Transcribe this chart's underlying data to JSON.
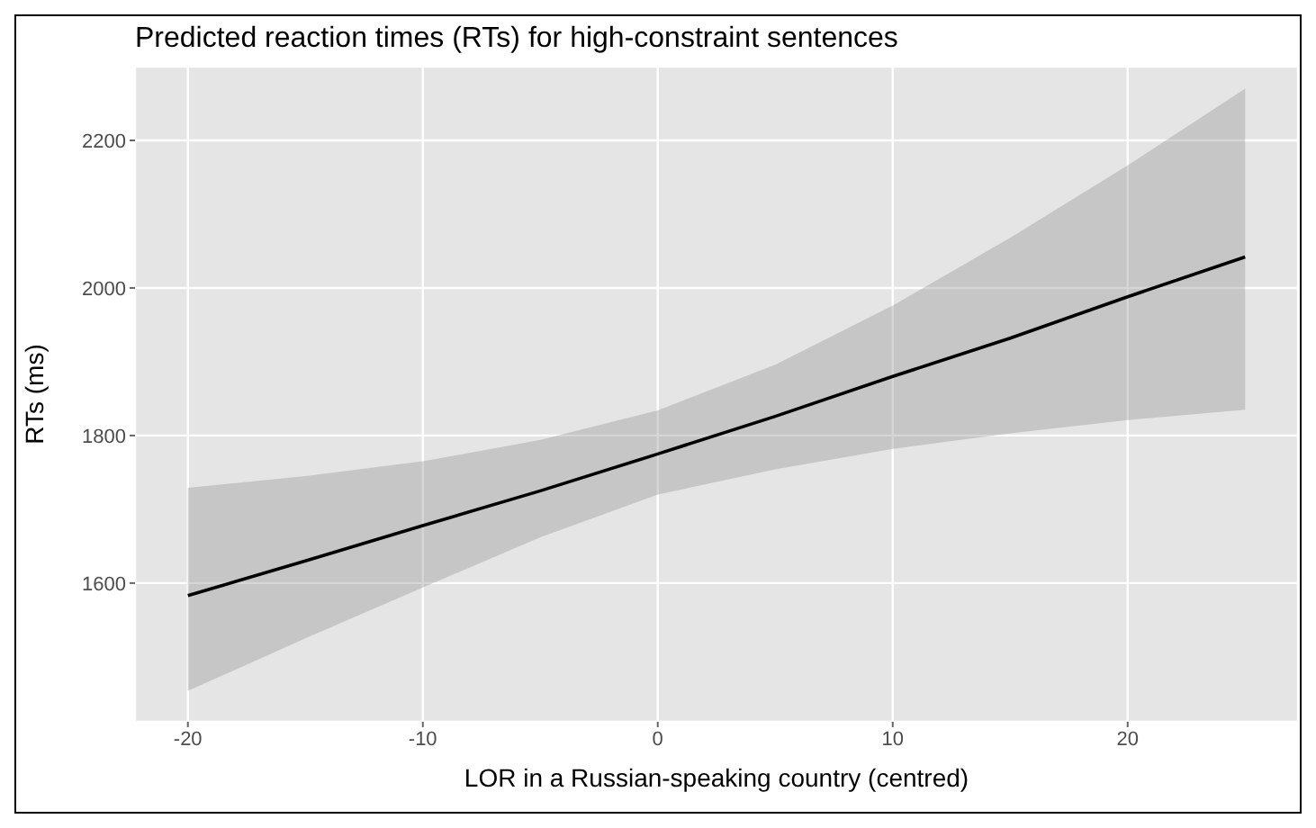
{
  "chart_data": {
    "type": "line",
    "title": "Predicted reaction times (RTs) for high-constraint sentences",
    "xlabel": "LOR in a Russian-speaking country (centred)",
    "ylabel": "RTs (ms)",
    "x": [
      -20,
      -15,
      -10,
      -5,
      0,
      5,
      10,
      15,
      20,
      25
    ],
    "series": [
      {
        "color": "#000000",
        "values": [
          1583,
          1630,
          1678,
          1725,
          1775,
          1826,
          1880,
          1932,
          1988,
          2042
        ],
        "lower": [
          1454,
          1525,
          1594,
          1662,
          1720,
          1754,
          1782,
          1803,
          1821,
          1835
        ],
        "upper": [
          1729,
          1745,
          1765,
          1794,
          1834,
          1896,
          1976,
          2068,
          2166,
          2270
        ]
      }
    ],
    "xlim": [
      -22.25,
      27.25
    ],
    "xticks": [
      -20,
      -10,
      0,
      10,
      20
    ],
    "ylim": [
      1412,
      2300
    ],
    "yticks": [
      1600,
      1800,
      2000,
      2200
    ],
    "grid": true,
    "marker": "none",
    "line_style": "solid"
  }
}
